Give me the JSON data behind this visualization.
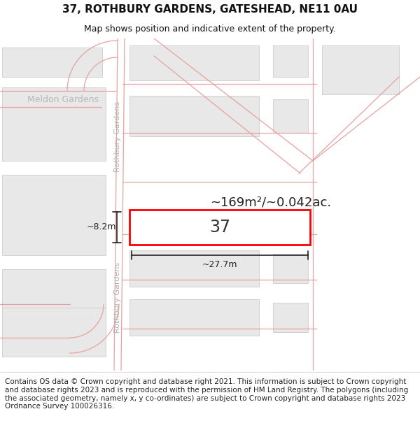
{
  "title_line1": "37, ROTHBURY GARDENS, GATESHEAD, NE11 0AU",
  "title_line2": "Map shows position and indicative extent of the property.",
  "footer_text": "Contains OS data © Crown copyright and database right 2021. This information is subject to Crown copyright and database rights 2023 and is reproduced with the permission of HM Land Registry. The polygons (including the associated geometry, namely x, y co-ordinates) are subject to Crown copyright and database rights 2023 Ordnance Survey 100026316.",
  "area_label": "~169m²/~0.042ac.",
  "house_number": "37",
  "dim_width": "~27.7m",
  "dim_height": "~8.2m",
  "street_label_top": "Rothbury Gardens",
  "street_label_bottom": "Rothbury Gardens",
  "meldon_label": "Meldon Gardens",
  "bg_color": "#ffffff",
  "road_line_color": "#e8a0a0",
  "building_fill": "#e8e8e8",
  "building_border": "#cccccc",
  "highlight_fill": "#ffffff",
  "highlight_border": "#ff0000",
  "dim_color": "#222222",
  "label_color": "#aaaaaa",
  "text_color": "#333333",
  "title_fontsize": 11,
  "subtitle_fontsize": 9,
  "footer_fontsize": 7.5
}
